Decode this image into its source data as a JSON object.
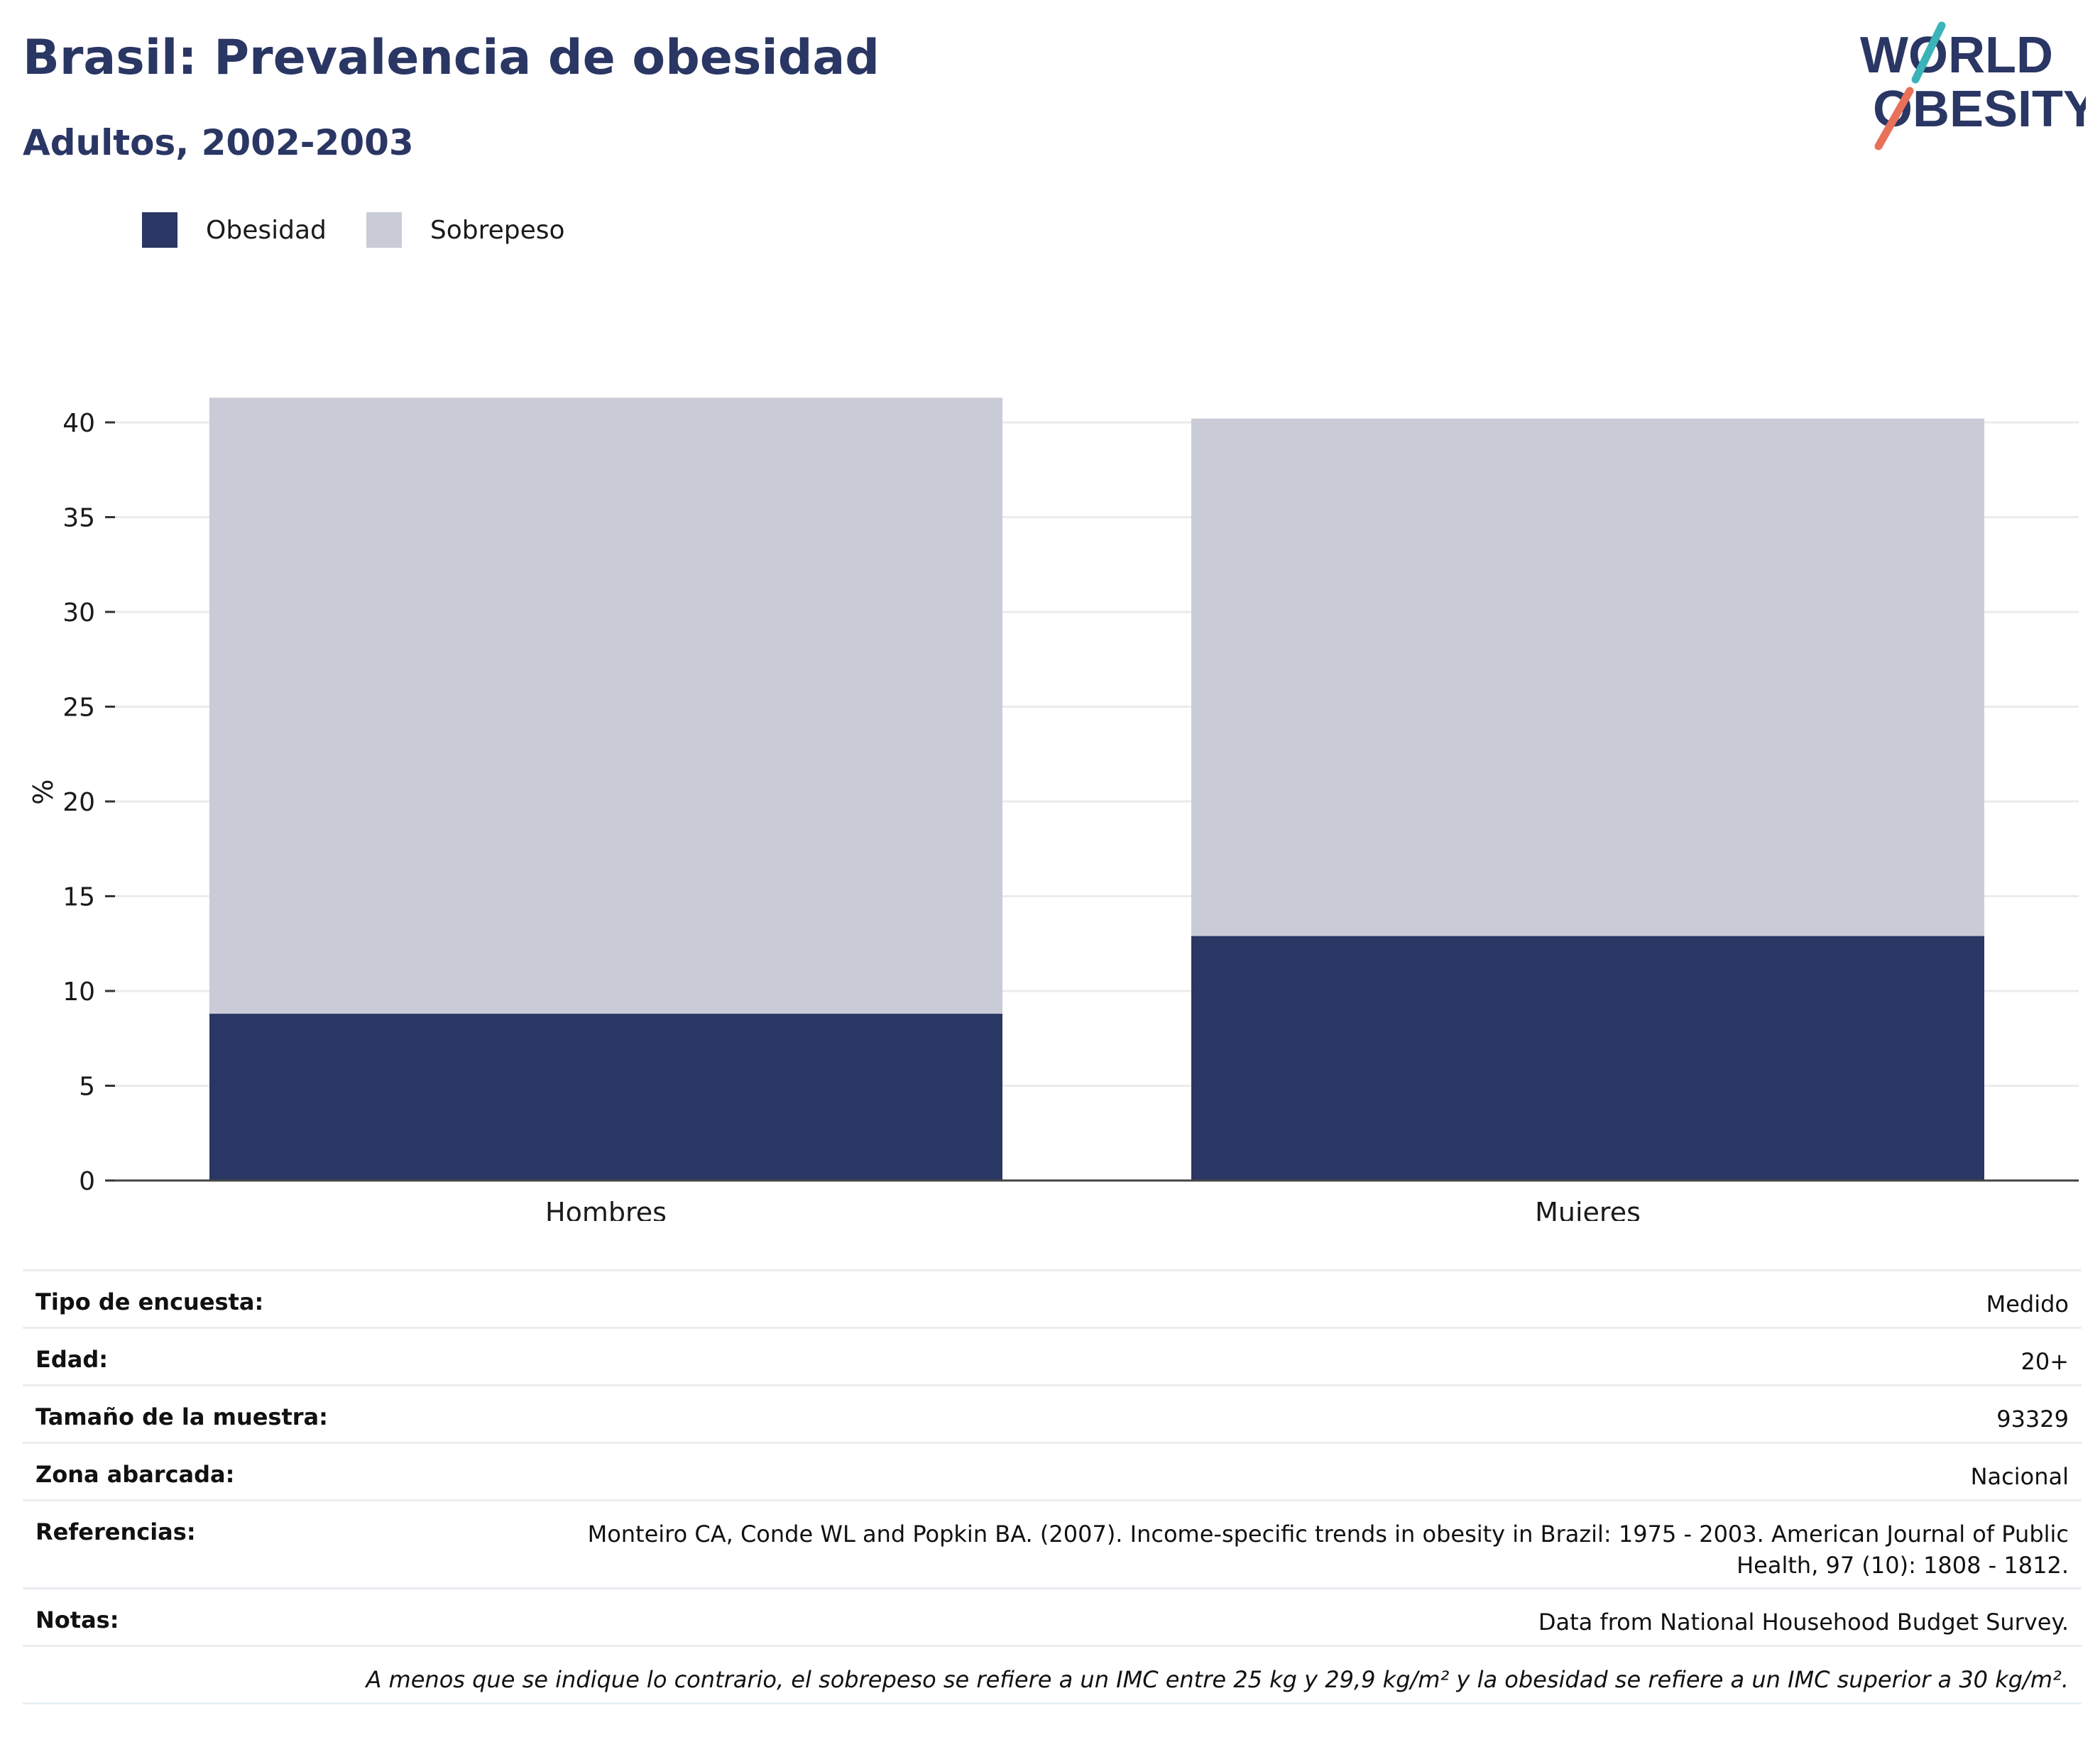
{
  "header": {
    "title": "Brasil: Prevalencia de obesidad",
    "subtitle": "Adultos, 2002-2003",
    "logo_line1": "WORLD",
    "logo_line2": "OBESITY"
  },
  "colors": {
    "obesidad": "#2a3663",
    "sobrepeso": "#c9cbd7",
    "title": "#2a3663",
    "logo_teal": "#3bb3b8",
    "logo_coral": "#e8715a"
  },
  "legend": [
    {
      "label": "Obesidad",
      "color": "#2a3663"
    },
    {
      "label": "Sobrepeso",
      "color": "#c9cbd7"
    }
  ],
  "chart_data": {
    "type": "bar",
    "stacked": true,
    "categories": [
      "Hombres",
      "Mujeres"
    ],
    "series": [
      {
        "name": "Obesidad",
        "values": [
          8.8,
          12.9
        ],
        "color": "#2a3663"
      },
      {
        "name": "Sobrepeso",
        "values": [
          32.5,
          27.3
        ],
        "color": "#c9cbd7"
      }
    ],
    "ylabel": "%",
    "xlabel": "",
    "ylim": [
      0,
      42
    ],
    "yticks": [
      0,
      5,
      10,
      15,
      20,
      25,
      30,
      35,
      40
    ],
    "grid": true,
    "legend_position": "top-left"
  },
  "info": {
    "rows": [
      {
        "key": "Tipo de encuesta:",
        "value": "Medido"
      },
      {
        "key": "Edad:",
        "value": "20+"
      },
      {
        "key": "Tamaño de la muestra:",
        "value": "93329"
      },
      {
        "key": "Zona abarcada:",
        "value": "Nacional"
      },
      {
        "key": "Referencias:",
        "value": "Monteiro CA, Conde WL and Popkin BA. (2007). Income-specific trends in obesity in Brazil: 1975 - 2003. American Journal of Public Health, 97 (10): 1808 - 1812."
      },
      {
        "key": "Notas:",
        "value": "Data from National Househood Budget Survey."
      }
    ],
    "footnote": "A menos que se indique lo contrario, el sobrepeso se refiere a un IMC entre 25 kg y 29,9 kg/m² y la obesidad se refiere a un IMC superior a 30 kg/m²."
  }
}
